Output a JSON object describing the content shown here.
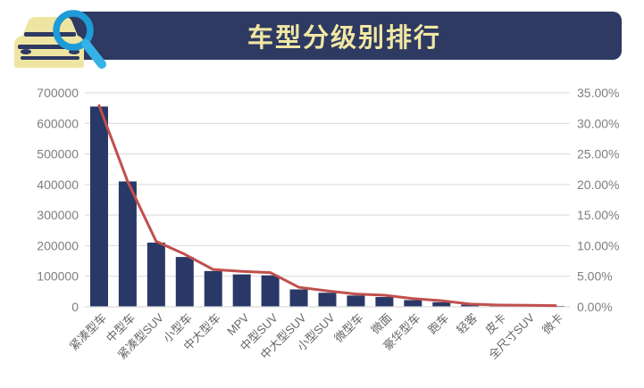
{
  "header": {
    "title": "车型分级别排行",
    "bg_color": "#2E3A62",
    "title_color": "#F0E7A3",
    "icon": "car-magnifier-icon"
  },
  "colors": {
    "background": "#FFFFFF",
    "bar": "#293866",
    "line": "#C0504D",
    "grid": "#D9D9D9",
    "axis_label": "#7F7F7F",
    "x_label": "#666666",
    "icon_car": "#EFE5A2",
    "icon_ring": "#1E9CD7",
    "icon_handle": "#35B3E8"
  },
  "chart_data": {
    "type": "bar",
    "subtype": "combo-bar-line-dual-axis",
    "title": "车型分级别排行",
    "categories": [
      "紧凑型车",
      "中型车",
      "紧凑型SUV",
      "小型车",
      "中大型车",
      "MPV",
      "中型SUV",
      "中大型SUV",
      "小型SUV",
      "微型车",
      "微面",
      "豪华型车",
      "跑车",
      "轻客",
      "皮卡",
      "全尺寸SUV",
      "微卡"
    ],
    "series": [
      {
        "name": "bar-series",
        "type": "bar",
        "axis": "left",
        "values": [
          655000,
          410000,
          210000,
          163000,
          117000,
          106000,
          103000,
          57000,
          46000,
          37000,
          32000,
          22000,
          15000,
          7000,
          5000,
          4000,
          3000
        ]
      },
      {
        "name": "line-series",
        "type": "line",
        "axis": "right",
        "values_percent": [
          32.9,
          20.5,
          10.7,
          8.6,
          6.1,
          5.8,
          5.6,
          3.2,
          2.6,
          2.1,
          1.9,
          1.35,
          1.0,
          0.45,
          0.3,
          0.25,
          0.2
        ]
      }
    ],
    "left_axis": {
      "min": 0,
      "max": 700000,
      "step": 100000,
      "tick_labels": [
        "0",
        "100000",
        "200000",
        "300000",
        "400000",
        "500000",
        "600000",
        "700000"
      ]
    },
    "right_axis": {
      "min": 0,
      "max": 35,
      "step": 5,
      "tick_labels": [
        "0.00%",
        "5.00%",
        "10.00%",
        "15.00%",
        "20.00%",
        "25.00%",
        "30.00%",
        "35.00%"
      ]
    },
    "grid": true,
    "legend": false,
    "x_label_rotation": -45
  }
}
